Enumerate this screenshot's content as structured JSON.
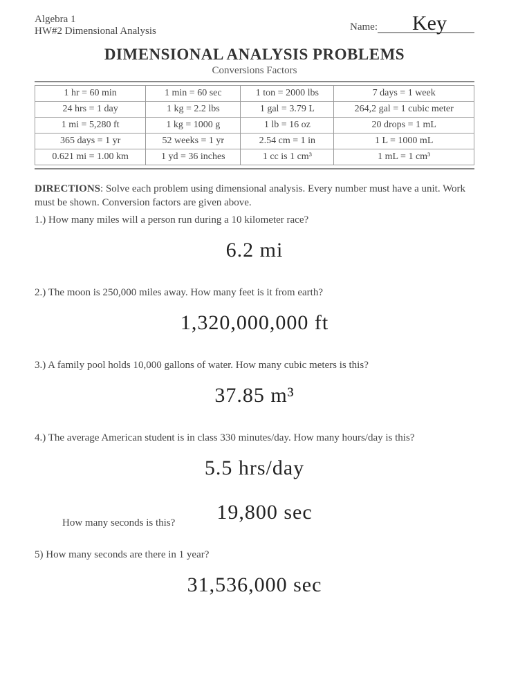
{
  "header": {
    "course": "Algebra 1",
    "assignment": "HW#2 Dimensional Analysis",
    "name_label": "Name:",
    "name_value": "Key"
  },
  "title": "DIMENSIONAL ANALYSIS PROBLEMS",
  "subtitle": "Conversions Factors",
  "table": {
    "rows": [
      [
        "1 hr = 60 min",
        "1 min = 60 sec",
        "1 ton = 2000 lbs",
        "7 days = 1 week"
      ],
      [
        "24 hrs = 1 day",
        "1 kg = 2.2 lbs",
        "1 gal = 3.79 L",
        "264,2 gal = 1 cubic meter"
      ],
      [
        "1 mi = 5,280 ft",
        "1 kg = 1000 g",
        "1 lb = 16 oz",
        "20 drops = 1 mL"
      ],
      [
        "365 days = 1 yr",
        "52 weeks = 1 yr",
        "2.54 cm = 1 in",
        "1 L = 1000 mL"
      ],
      [
        "0.621 mi = 1.00 km",
        "1 yd = 36 inches",
        "1 cc is 1 cm³",
        "1 mL = 1 cm³"
      ]
    ]
  },
  "directions": {
    "label": "DIRECTIONS",
    "text": ": Solve each problem using dimensional analysis. Every number must have a unit. Work must be shown.  Conversion factors are given above."
  },
  "questions": {
    "q1": {
      "text": "1.) How many miles will a person run during a 10 kilometer race?",
      "answer": "6.2 mi"
    },
    "q2": {
      "text": "2.) The moon is 250,000 miles away. How many feet is it from earth?",
      "answer": "1,320,000,000 ft"
    },
    "q3": {
      "text": "3.) A family pool holds 10,000 gallons of water. How many cubic meters is this?",
      "answer": "37.85 m³"
    },
    "q4": {
      "text": "4.) The average American student is in class 330 minutes/day.  How many hours/day is this?",
      "answer": "5.5 hrs/day",
      "sub_text": "How many seconds is this?",
      "sub_answer": "19,800 sec"
    },
    "q5": {
      "text": "5) How many seconds are there in 1 year?",
      "answer": "31,536,000 sec"
    }
  }
}
